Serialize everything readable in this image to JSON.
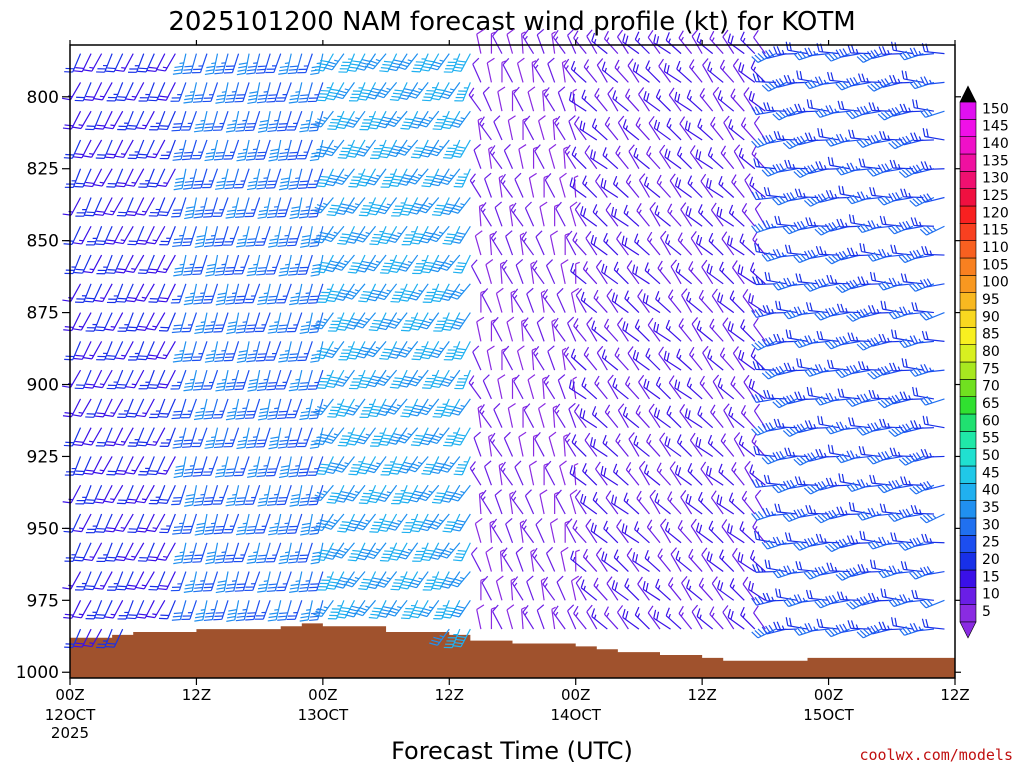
{
  "chart_data": {
    "type": "wind_barb_time_height",
    "title": "2025101200 NAM forecast wind profile (kt) for KOTM",
    "xlabel": "Forecast Time (UTC)",
    "ylabel": "",
    "y_axis": {
      "units": "hPa",
      "inverted": true,
      "range": [
        1002,
        782
      ],
      "ticks": [
        800,
        825,
        850,
        875,
        900,
        925,
        950,
        975,
        1000
      ]
    },
    "x_axis": {
      "units": "forecast hour",
      "range": [
        0,
        84
      ],
      "ticks": [
        {
          "hour": 0,
          "label": "00Z",
          "sublabel": "12OCT",
          "sublabel2": "2025"
        },
        {
          "hour": 12,
          "label": "12Z",
          "sublabel": "",
          "sublabel2": ""
        },
        {
          "hour": 24,
          "label": "00Z",
          "sublabel": "13OCT",
          "sublabel2": ""
        },
        {
          "hour": 36,
          "label": "12Z",
          "sublabel": "",
          "sublabel2": ""
        },
        {
          "hour": 48,
          "label": "00Z",
          "sublabel": "14OCT",
          "sublabel2": ""
        },
        {
          "hour": 60,
          "label": "12Z",
          "sublabel": "",
          "sublabel2": ""
        },
        {
          "hour": 72,
          "label": "00Z",
          "sublabel": "15OCT",
          "sublabel2": ""
        },
        {
          "hour": 84,
          "label": "12Z",
          "sublabel": "",
          "sublabel2": ""
        }
      ]
    },
    "colorbar": {
      "units": "kt",
      "levels": [
        5,
        10,
        15,
        20,
        25,
        30,
        35,
        40,
        45,
        50,
        55,
        60,
        65,
        70,
        75,
        80,
        85,
        90,
        95,
        100,
        105,
        110,
        115,
        120,
        125,
        130,
        135,
        140,
        145,
        150
      ],
      "colors": [
        "#8a2be2",
        "#6a1ee6",
        "#3a10e8",
        "#1830e8",
        "#1c4ef0",
        "#2070f0",
        "#2090f0",
        "#20b0f0",
        "#20c8e8",
        "#20e0d0",
        "#20e8a8",
        "#20e070",
        "#30e030",
        "#70e020",
        "#a8e820",
        "#d8f020",
        "#f8f020",
        "#f8d820",
        "#f8b820",
        "#f89820",
        "#f88020",
        "#f86020",
        "#f84020",
        "#f82020",
        "#f01040",
        "#f01070",
        "#f010a0",
        "#f010c8",
        "#f010e8",
        "#e010f0"
      ]
    },
    "wind_field": {
      "time_step_hours": 1,
      "levels_hpa": [
        785,
        795,
        805,
        815,
        825,
        835,
        845,
        855,
        865,
        875,
        885,
        895,
        905,
        915,
        925,
        935,
        945,
        955,
        965,
        975,
        985,
        995
      ],
      "regimes": [
        {
          "hours": [
            0,
            10
          ],
          "speed_kt": [
            15,
            25
          ],
          "direction_deg": [
            200,
            210
          ]
        },
        {
          "hours": [
            10,
            24
          ],
          "speed_kt": [
            25,
            40
          ],
          "direction_deg": [
            190,
            200
          ]
        },
        {
          "hours": [
            24,
            38
          ],
          "speed_kt": [
            35,
            45
          ],
          "direction_deg": [
            200,
            220
          ]
        },
        {
          "hours": [
            38,
            48
          ],
          "speed_kt": [
            5,
            15
          ],
          "direction_deg": [
            320,
            360
          ]
        },
        {
          "hours": [
            48,
            66
          ],
          "speed_kt": [
            10,
            20
          ],
          "direction_deg": [
            300,
            330
          ]
        },
        {
          "hours": [
            66,
            84
          ],
          "speed_kt": [
            20,
            35
          ],
          "direction_deg": [
            240,
            280
          ]
        }
      ]
    },
    "terrain": {
      "color": "#a0522d",
      "surface_pressure_hpa": [
        {
          "hour": 0,
          "p": 988
        },
        {
          "hour": 4,
          "p": 987
        },
        {
          "hour": 6,
          "p": 986
        },
        {
          "hour": 12,
          "p": 985
        },
        {
          "hour": 18,
          "p": 985
        },
        {
          "hour": 20,
          "p": 984
        },
        {
          "hour": 22,
          "p": 983
        },
        {
          "hour": 24,
          "p": 984
        },
        {
          "hour": 30,
          "p": 986
        },
        {
          "hour": 36,
          "p": 987
        },
        {
          "hour": 38,
          "p": 989
        },
        {
          "hour": 42,
          "p": 990
        },
        {
          "hour": 48,
          "p": 991
        },
        {
          "hour": 50,
          "p": 992
        },
        {
          "hour": 52,
          "p": 993
        },
        {
          "hour": 56,
          "p": 994
        },
        {
          "hour": 60,
          "p": 995
        },
        {
          "hour": 62,
          "p": 996
        },
        {
          "hour": 66,
          "p": 996
        },
        {
          "hour": 70,
          "p": 995
        },
        {
          "hour": 72,
          "p": 995
        },
        {
          "hour": 76,
          "p": 995
        },
        {
          "hour": 80,
          "p": 995
        },
        {
          "hour": 84,
          "p": 995
        }
      ]
    }
  },
  "credit": "coolwx.com/models"
}
